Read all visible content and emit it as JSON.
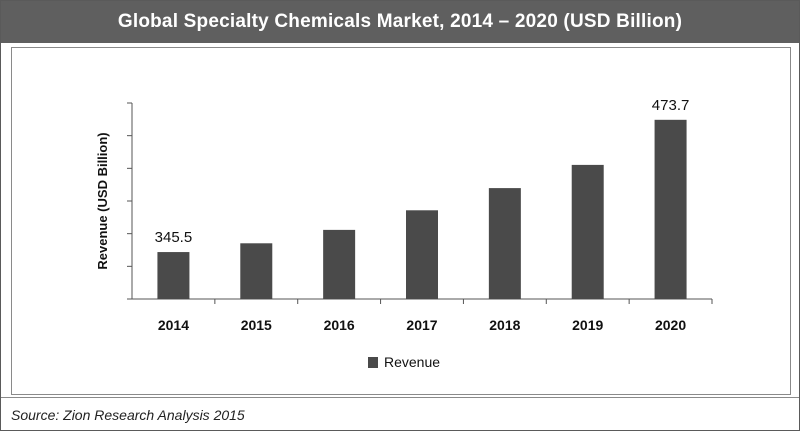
{
  "header": {
    "title": "Global Specialty Chemicals Market, 2014 – 2020 (USD Billion)"
  },
  "footer": {
    "source": "Source: Zion Research Analysis 2015"
  },
  "colors": {
    "bar": "#4a4a4a",
    "title_bar": "#5f5f5f",
    "axis": "#555555"
  },
  "chart_data": {
    "type": "bar",
    "title": "Global Specialty Chemicals Market, 2014 – 2020 (USD Billion)",
    "xlabel": "",
    "ylabel": "Revenue (USD Billion)",
    "categories": [
      "2014",
      "2015",
      "2016",
      "2017",
      "2018",
      "2019",
      "2020"
    ],
    "series": [
      {
        "name": "Revenue",
        "values": [
          345.5,
          354.0,
          367.0,
          386.0,
          407.5,
          430.0,
          473.7
        ]
      }
    ],
    "data_labels": [
      {
        "category": "2014",
        "text": "345.5"
      },
      {
        "category": "2020",
        "text": "473.7"
      }
    ],
    "ylim": [
      300,
      490
    ],
    "y_tick_labels_shown": false,
    "grid": false,
    "legend": {
      "position": "bottom-center",
      "entries": [
        "Revenue"
      ]
    }
  }
}
